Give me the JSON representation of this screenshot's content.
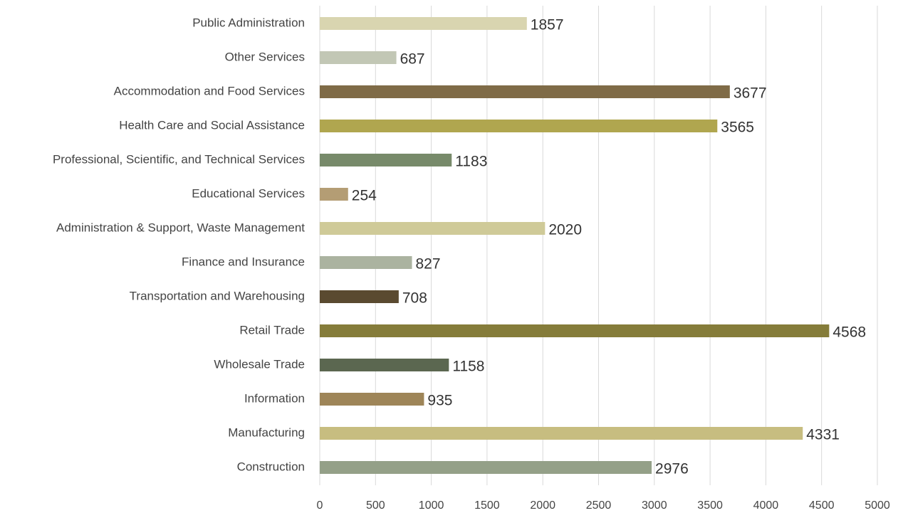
{
  "chart_data": {
    "type": "bar",
    "orientation": "horizontal",
    "categories": [
      "Public Administration",
      "Other Services",
      "Accommodation and Food Services",
      "Health Care and Social Assistance",
      "Professional, Scientific, and Technical Services",
      "Educational Services",
      "Administration & Support, Waste Management",
      "Finance and Insurance",
      "Transportation and Warehousing",
      "Retail Trade",
      "Wholesale Trade",
      "Information",
      "Manufacturing",
      "Construction"
    ],
    "values": [
      1857,
      687,
      3677,
      3565,
      1183,
      254,
      2020,
      827,
      708,
      4568,
      1158,
      935,
      4331,
      2976
    ],
    "colors": [
      "#d9d5b0",
      "#c2c7b5",
      "#7f6b47",
      "#b0a64f",
      "#778a6a",
      "#b49d74",
      "#cfca98",
      "#abb3a0",
      "#5a4a30",
      "#857c3a",
      "#5b6750",
      "#9e8558",
      "#c7bd80",
      "#94a088"
    ],
    "xlim": [
      0,
      5000
    ],
    "xticks": [
      0,
      500,
      1000,
      1500,
      2000,
      2500,
      3000,
      3500,
      4000,
      4500,
      5000
    ],
    "grid": true
  }
}
